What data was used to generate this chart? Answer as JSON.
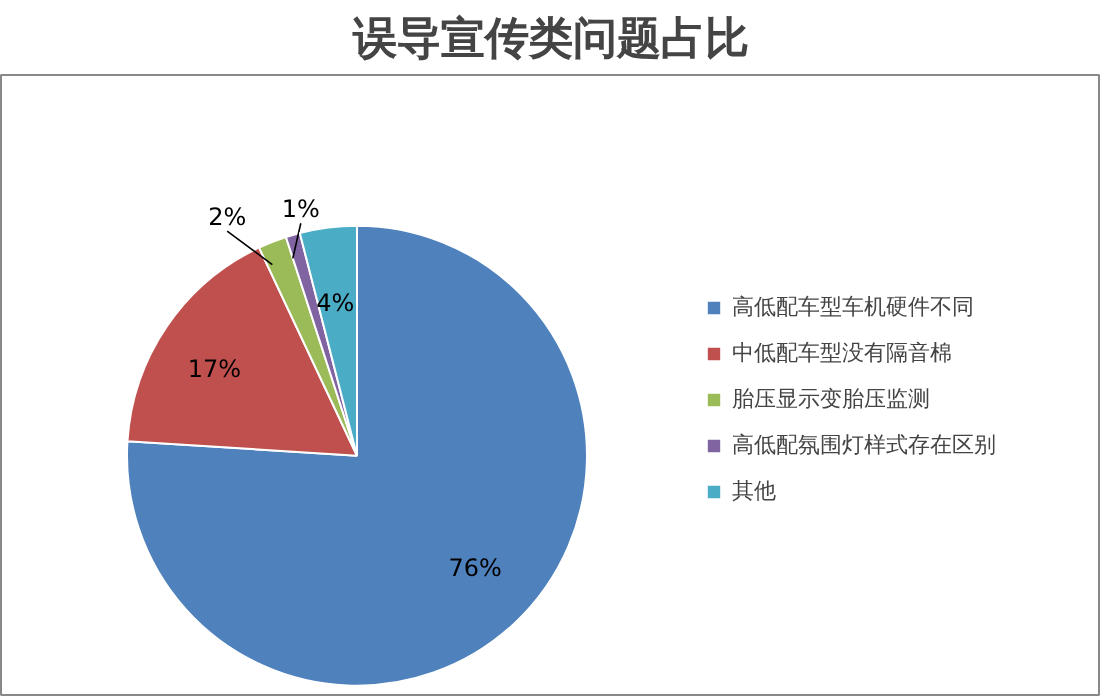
{
  "chart_data": {
    "type": "pie",
    "title": "误导宣传类问题占比",
    "categories": [
      "高低配车型车机硬件不同",
      "中低配车型没有隔音棉",
      "胎压显示变胎压监测",
      "高低配氛围灯样式存在区别",
      "其他"
    ],
    "values": [
      76,
      17,
      2,
      1,
      4
    ],
    "colors": [
      "#4f81bd",
      "#c0504d",
      "#9bbb59",
      "#8064a2",
      "#4bacc6"
    ],
    "value_labels": [
      "76%",
      "17%",
      "2%",
      "1%",
      "4%"
    ],
    "legend": "right"
  }
}
